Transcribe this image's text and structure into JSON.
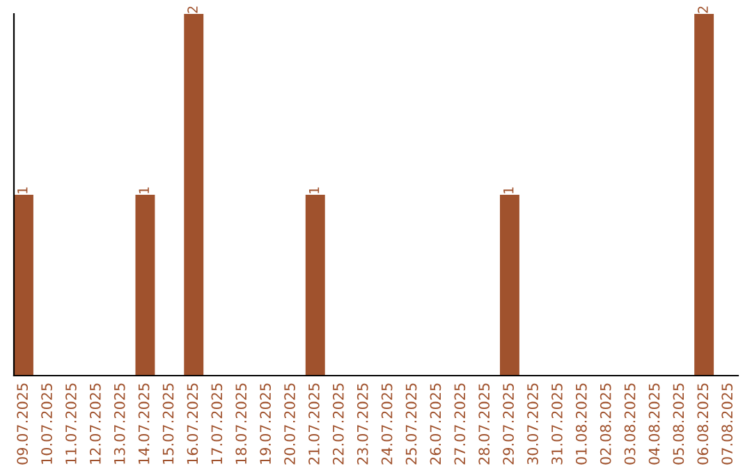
{
  "chart_data": {
    "type": "bar",
    "categories": [
      "09.07.2025",
      "10.07.2025",
      "11.07.2025",
      "12.07.2025",
      "13.07.2025",
      "14.07.2025",
      "15.07.2025",
      "16.07.2025",
      "17.07.2025",
      "18.07.2025",
      "19.07.2025",
      "20.07.2025",
      "21.07.2025",
      "22.07.2025",
      "23.07.2025",
      "24.07.2025",
      "25.07.2025",
      "26.07.2025",
      "27.07.2025",
      "28.07.2025",
      "29.07.2025",
      "30.07.2025",
      "31.07.2025",
      "01.08.2025",
      "02.08.2025",
      "03.08.2025",
      "04.08.2025",
      "05.08.2025",
      "06.08.2025",
      "07.08.2025"
    ],
    "values": [
      1,
      0,
      0,
      0,
      0,
      1,
      0,
      2,
      0,
      0,
      0,
      0,
      1,
      0,
      0,
      0,
      0,
      0,
      0,
      0,
      1,
      0,
      0,
      0,
      0,
      0,
      0,
      0,
      2,
      0
    ],
    "color": "#a0522d",
    "value_labels": [
      "1",
      null,
      null,
      null,
      null,
      "1",
      null,
      "2",
      null,
      null,
      null,
      null,
      "1",
      null,
      null,
      null,
      null,
      null,
      null,
      null,
      "1",
      null,
      null,
      null,
      null,
      null,
      null,
      null,
      "2",
      null
    ],
    "tick_labels": "x",
    "grid": false,
    "legend": false
  }
}
